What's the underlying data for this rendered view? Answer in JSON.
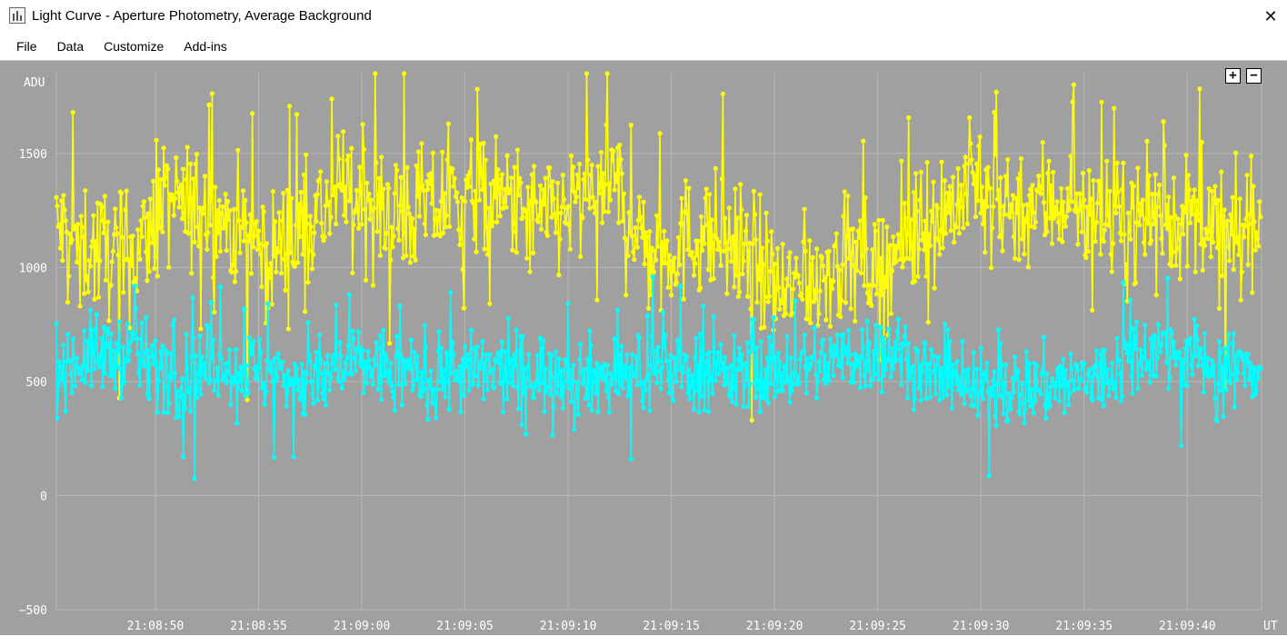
{
  "window": {
    "title": "Light Curve - Aperture Photometry, Average Background",
    "close_glyph": "✕"
  },
  "menu": [
    "File",
    "Data",
    "Customize",
    "Add-ins"
  ],
  "zoom": {
    "in_label": "+",
    "out_label": "−"
  },
  "colors": {
    "background": "#a0a0a0",
    "grid": "#b8b8b8",
    "target": "#ffff00",
    "comparison": "#00ffff",
    "axis_text": "#ffffff"
  },
  "chart_data": {
    "type": "line",
    "ylabel": "ADU",
    "xlabel": "UT",
    "ylim": [
      -500,
      1850
    ],
    "yticks": [
      -500,
      0,
      500,
      1000,
      1500
    ],
    "xrange": [
      "21:08:45.2",
      "21:09:43.6"
    ],
    "xticks": [
      "21:08:50",
      "21:08:55",
      "21:09:00",
      "21:09:05",
      "21:09:10",
      "21:09:15",
      "21:09:20",
      "21:09:25",
      "21:09:30",
      "21:09:35",
      "21:09:40"
    ],
    "grid": true,
    "markers": true,
    "sample_interval_s": 0.05,
    "series": [
      {
        "color": "#ffff00",
        "keyframes": [
          [
            "21:08:45.2",
            1170
          ],
          [
            "21:08:47.0",
            1080
          ],
          [
            "21:08:49.0",
            1050
          ],
          [
            "21:08:50.5",
            1280
          ],
          [
            "21:08:52.5",
            1250
          ],
          [
            "21:08:54.0",
            1180
          ],
          [
            "21:08:55.5",
            1050
          ],
          [
            "21:08:57.5",
            1220
          ],
          [
            "21:08:59.5",
            1320
          ],
          [
            "21:09:01.5",
            1220
          ],
          [
            "21:09:04.0",
            1280
          ],
          [
            "21:09:06.0",
            1300
          ],
          [
            "21:09:08.5",
            1200
          ],
          [
            "21:09:10.5",
            1280
          ],
          [
            "21:09:12.5",
            1340
          ],
          [
            "21:09:14.0",
            1050
          ],
          [
            "21:09:16.5",
            1150
          ],
          [
            "21:09:18.5",
            1100
          ],
          [
            "21:09:20.5",
            870
          ],
          [
            "21:09:23.0",
            1030
          ],
          [
            "21:09:25.0",
            1000
          ],
          [
            "21:09:27.0",
            1150
          ],
          [
            "21:09:29.5",
            1350
          ],
          [
            "21:09:31.5",
            1270
          ],
          [
            "21:09:34.5",
            1300
          ],
          [
            "21:09:36.5",
            1180
          ],
          [
            "21:09:38.5",
            1230
          ],
          [
            "21:09:40.5",
            1200
          ],
          [
            "21:09:42.5",
            1100
          ],
          [
            "21:09:43.6",
            1230
          ]
        ],
        "scatter": 300,
        "spike_max": 1850
      },
      {
        "color": "#00ffff",
        "keyframes": [
          [
            "21:08:45.2",
            560
          ],
          [
            "21:08:47.0",
            620
          ],
          [
            "21:08:49.0",
            620
          ],
          [
            "21:08:51.0",
            520
          ],
          [
            "21:08:53.0",
            580
          ],
          [
            "21:08:55.0",
            550
          ],
          [
            "21:08:57.5",
            500
          ],
          [
            "21:09:00.0",
            580
          ],
          [
            "21:09:03.0",
            520
          ],
          [
            "21:09:06.0",
            540
          ],
          [
            "21:09:09.0",
            540
          ],
          [
            "21:09:12.0",
            520
          ],
          [
            "21:09:15.0",
            560
          ],
          [
            "21:09:18.0",
            520
          ],
          [
            "21:09:21.0",
            560
          ],
          [
            "21:09:24.0",
            610
          ],
          [
            "21:09:26.0",
            640
          ],
          [
            "21:09:28.0",
            500
          ],
          [
            "21:09:30.0",
            460
          ],
          [
            "21:09:33.0",
            480
          ],
          [
            "21:09:36.0",
            520
          ],
          [
            "21:09:38.0",
            650
          ],
          [
            "21:09:40.0",
            620
          ],
          [
            "21:09:42.0",
            540
          ],
          [
            "21:09:43.6",
            580
          ]
        ],
        "scatter": 190,
        "spike_max": 1070
      }
    ]
  }
}
